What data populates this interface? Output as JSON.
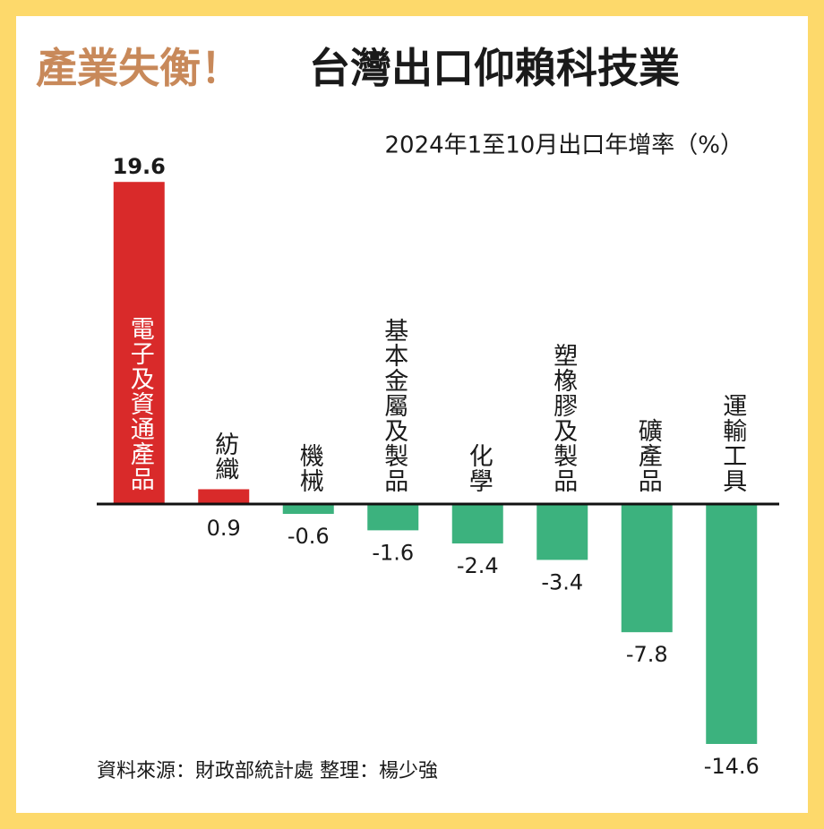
{
  "chart_data": {
    "type": "bar",
    "title_highlight": "產業失衡！",
    "title": "台灣出口仰賴科技業",
    "subtitle": "2024年1至10月出口年增率（%）",
    "source": "資料來源：財政部統計處  整理：楊少強",
    "categories": [
      "電子及資通產品",
      "紡織",
      "機械",
      "基本金屬及製品",
      "化學",
      "塑橡膠及製品",
      "礦產品",
      "運輸工具"
    ],
    "values": [
      19.6,
      0.9,
      -0.6,
      -1.6,
      -2.4,
      -3.4,
      -7.8,
      -14.6
    ],
    "positive_color": "#d92a2a",
    "negative_color": "#3cb27e"
  }
}
